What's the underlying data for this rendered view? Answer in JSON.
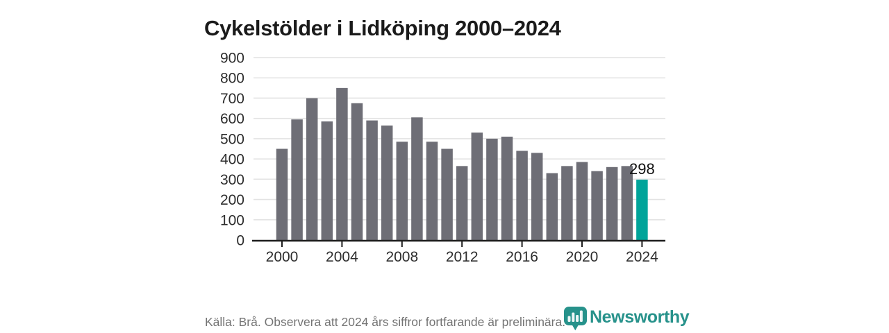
{
  "title": "Cykelstölder i Lidköping 2000–2024",
  "chart_data": {
    "type": "bar",
    "title": "Cykelstölder i Lidköping 2000–2024",
    "categories": [
      2000,
      2001,
      2002,
      2003,
      2004,
      2005,
      2006,
      2007,
      2008,
      2009,
      2010,
      2011,
      2012,
      2013,
      2014,
      2015,
      2016,
      2017,
      2018,
      2019,
      2020,
      2021,
      2022,
      2023,
      2024
    ],
    "values": [
      450,
      595,
      700,
      585,
      750,
      675,
      590,
      565,
      485,
      605,
      485,
      450,
      365,
      530,
      500,
      510,
      440,
      430,
      330,
      365,
      385,
      340,
      360,
      365,
      298
    ],
    "highlight_index": 24,
    "highlight_label": "298",
    "xlabel": "",
    "ylabel": "",
    "ylim": [
      0,
      900
    ],
    "ytick_step": 100,
    "xticks": [
      2000,
      2004,
      2008,
      2012,
      2016,
      2020,
      2024
    ],
    "grid": "horizontal",
    "legend": "none"
  },
  "footer": {
    "source_note": "Källa: Brå. Observera att 2024 års siffror fortfarande är preliminära."
  },
  "logo": {
    "brand": "Newsworthy",
    "icon": "newsworthy-pin-bar-chart-icon",
    "color": "#27928b"
  },
  "colors": {
    "background": "#ffffff",
    "title_text": "#1a1a1a",
    "bar": "#6e6e76",
    "highlight_bar": "#00a49a",
    "gridline": "#e3e3e3",
    "axis_line": "#1d1d1d",
    "tick_label": "#2d2d2d",
    "annotation_text": "#111111",
    "footer_text": "#747474",
    "logo_teal": "#27928b"
  }
}
